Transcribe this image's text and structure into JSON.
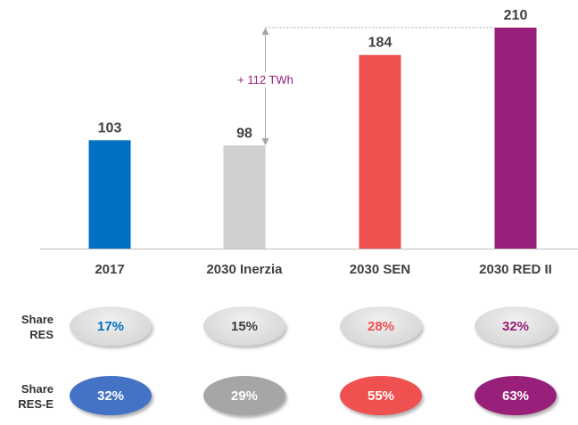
{
  "chart_data": {
    "type": "bar",
    "categories": [
      "2017",
      "2030 Inerzia",
      "2030 SEN",
      "2030 RED II"
    ],
    "values": [
      103,
      98,
      184,
      210
    ],
    "value_labels": [
      "103",
      "98",
      "184",
      "210"
    ],
    "colors": [
      "#0070c0",
      "#d0cece",
      "#ef5050",
      "#99207a"
    ],
    "ylim": [
      0,
      210
    ],
    "annotation": {
      "text": "+ 112 TWh",
      "color": "#99207a",
      "from_category": "2030 Inerzia",
      "from_value": 98,
      "to_value": 210
    },
    "grid": false,
    "legend": "none"
  },
  "rows": [
    {
      "label_line1": "Share",
      "label_line2": "RES",
      "style": "light",
      "pills": [
        {
          "text": "17%",
          "color": "#0070c0"
        },
        {
          "text": "15%",
          "color": "#404040"
        },
        {
          "text": "28%",
          "color": "#ef5050"
        },
        {
          "text": "32%",
          "color": "#99207a"
        }
      ]
    },
    {
      "label_line1": "Share",
      "label_line2": "RES-E",
      "style": "filled",
      "pills": [
        {
          "text": "32%",
          "color": "#4472c4"
        },
        {
          "text": "29%",
          "color": "#a6a6a6"
        },
        {
          "text": "55%",
          "color": "#ef5050"
        },
        {
          "text": "63%",
          "color": "#99207a"
        }
      ]
    }
  ]
}
